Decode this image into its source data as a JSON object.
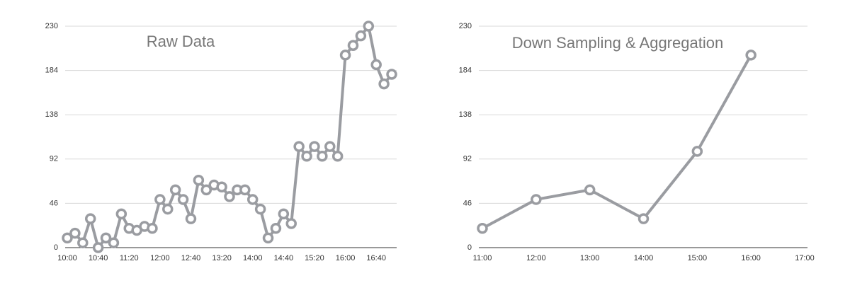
{
  "chart_data": [
    {
      "type": "line",
      "title": "Raw Data",
      "categories": [
        "10:00",
        null,
        null,
        null,
        "10:40",
        null,
        null,
        null,
        "11:20",
        null,
        null,
        null,
        "12:00",
        null,
        null,
        null,
        "12:40",
        null,
        null,
        null,
        "13:20",
        null,
        null,
        null,
        "14:00",
        null,
        null,
        null,
        "14:40",
        null,
        null,
        null,
        "15:20",
        null,
        null,
        null,
        "16:00",
        null,
        null,
        null,
        "16:40",
        null,
        null
      ],
      "values": [
        10,
        15,
        5,
        30,
        0,
        10,
        5,
        35,
        20,
        18,
        22,
        20,
        50,
        40,
        60,
        50,
        30,
        70,
        60,
        65,
        63,
        53,
        60,
        60,
        50,
        40,
        10,
        20,
        35,
        25,
        105,
        95,
        105,
        95,
        105,
        95,
        200,
        210,
        220,
        230,
        190,
        170,
        180
      ],
      "color": "#9a9ca1",
      "ylim": [
        0,
        230
      ],
      "yticks": [
        0,
        46,
        92,
        138,
        184,
        230
      ],
      "grid": true
    },
    {
      "type": "line",
      "title": "Down Sampling & Aggregation",
      "categories": [
        "11:00",
        "12:00",
        "13:00",
        "14:00",
        "15:00",
        "16:00",
        "17:00"
      ],
      "values": [
        20,
        50,
        60,
        30,
        100,
        200,
        null
      ],
      "color": "#9a9ca1",
      "ylim": [
        0,
        230
      ],
      "yticks": [
        0,
        46,
        92,
        138,
        184,
        230
      ],
      "grid": true
    }
  ]
}
